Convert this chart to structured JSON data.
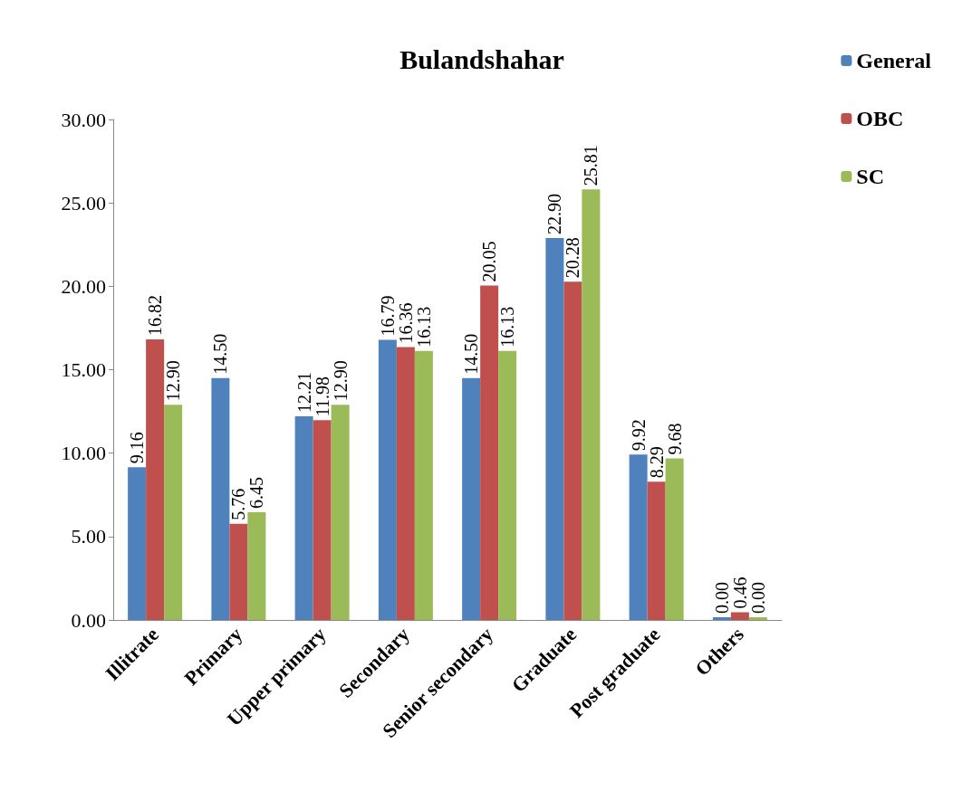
{
  "chart_data": {
    "type": "bar",
    "title": "Bulandshahar",
    "categories": [
      "Illitrate",
      "Primary",
      "Upper primary",
      "Secondary",
      "Senior secondary",
      "Graduate",
      "Post graduate",
      "Others"
    ],
    "series": [
      {
        "name": "General",
        "color": "#4f81bd",
        "values": [
          9.16,
          14.5,
          12.21,
          16.79,
          14.5,
          22.9,
          9.92,
          0.0
        ],
        "value_labels": [
          "9.16",
          "14.50",
          "12.21",
          "16.79",
          "14.50",
          "22.90",
          "9.92",
          "0.00"
        ]
      },
      {
        "name": "OBC",
        "color": "#c0504d",
        "values": [
          16.82,
          5.76,
          11.98,
          16.36,
          20.05,
          20.28,
          8.29,
          0.46
        ],
        "value_labels": [
          "16.82",
          "5.76",
          "11.98",
          "16.36",
          "20.05",
          "20.28",
          "8.29",
          "0.46"
        ]
      },
      {
        "name": "SC",
        "color": "#9bbb59",
        "values": [
          12.9,
          6.45,
          12.9,
          16.13,
          16.13,
          25.81,
          9.68,
          0.0
        ],
        "value_labels": [
          "12.90",
          "6.45",
          "12.90",
          "16.13",
          "16.13",
          "25.81",
          "9.68",
          "0.00"
        ]
      }
    ],
    "ylim": [
      0,
      30
    ],
    "yticks": [
      {
        "value": 0,
        "label": "0.00"
      },
      {
        "value": 5,
        "label": "5.00"
      },
      {
        "value": 10,
        "label": "10.00"
      },
      {
        "value": 15,
        "label": "15.00"
      },
      {
        "value": 20,
        "label": "20.00"
      },
      {
        "value": 25,
        "label": "25.00"
      },
      {
        "value": 30,
        "label": "30.00"
      }
    ],
    "grid": false,
    "legend": "top right"
  }
}
